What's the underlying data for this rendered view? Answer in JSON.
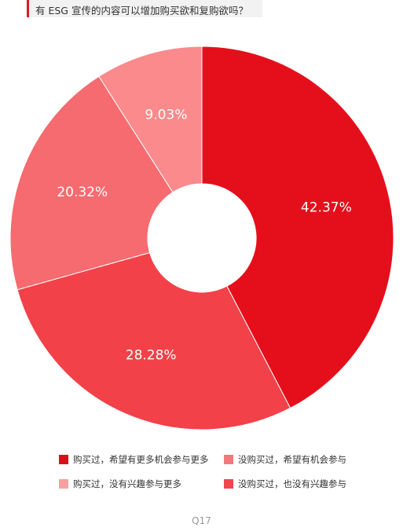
{
  "question_title": "有 ESG 宣传的内容可以增加购买欲和复购欲吗？",
  "footer": "Q17",
  "chart_data": {
    "type": "pie",
    "variant": "donut",
    "title": "有 ESG 宣传的内容可以增加购买欲和复购欲吗？",
    "legend_position": "bottom",
    "slices": [
      {
        "label": "购买过，希望有更多机会参与更多",
        "value": 42.37,
        "display": "42.37%",
        "color": "#e50f1c",
        "legend_color": "#d9101c"
      },
      {
        "label": "没购买过，也没有兴趣参与",
        "value": 28.28,
        "display": "28.28%",
        "color": "#f24149",
        "legend_color": "#f0474e"
      },
      {
        "label": "没购买过，希望有机会参与",
        "value": 20.32,
        "display": "20.32%",
        "color": "#f56b6f",
        "legend_color": "#f2797b"
      },
      {
        "label": "购买过，没有兴趣参与更多",
        "value": 9.03,
        "display": "9.03%",
        "color": "#fa8a8c",
        "legend_color": "#f7a0a1"
      }
    ],
    "legend_order": [
      0,
      2,
      3,
      1
    ]
  }
}
